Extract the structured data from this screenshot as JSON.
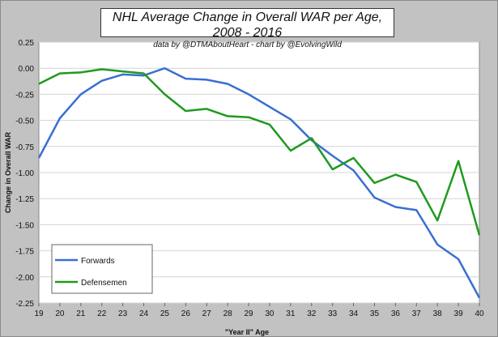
{
  "chart_data": {
    "type": "line",
    "title": "NHL Average Change in Overall WAR per Age, 2008 - 2016",
    "subtitle": "data by @DTMAboutHeart  -  chart by @EvolvingWild",
    "xlabel": "\"Year II\" Age",
    "ylabel": "Change in Overall WAR",
    "x": [
      19,
      20,
      21,
      22,
      23,
      24,
      25,
      26,
      27,
      28,
      29,
      30,
      31,
      32,
      33,
      34,
      35,
      36,
      37,
      38,
      39,
      40
    ],
    "ylim": [
      -2.25,
      0.25
    ],
    "yticks": [
      "0.25",
      "0.00",
      "-0.25",
      "-0.50",
      "-0.75",
      "-1.00",
      "-1.25",
      "-1.50",
      "-1.75",
      "-2.00",
      "-2.25"
    ],
    "grid": "horizontal",
    "legend_position": "bottom-left",
    "series": [
      {
        "name": "Forwards",
        "color": "#3a6fd0",
        "values": [
          -0.86,
          -0.48,
          -0.25,
          -0.12,
          -0.06,
          -0.07,
          0.0,
          -0.1,
          -0.11,
          -0.15,
          -0.25,
          -0.37,
          -0.49,
          -0.69,
          -0.84,
          -0.98,
          -1.24,
          -1.33,
          -1.36,
          -1.69,
          -1.83,
          -2.2
        ]
      },
      {
        "name": "Defensemen",
        "color": "#1f9a1f",
        "values": [
          -0.15,
          -0.05,
          -0.04,
          -0.01,
          -0.03,
          -0.05,
          -0.25,
          -0.41,
          -0.39,
          -0.46,
          -0.47,
          -0.54,
          -0.79,
          -0.67,
          -0.97,
          -0.86,
          -1.1,
          -1.02,
          -1.09,
          -1.46,
          -0.89,
          -1.6
        ]
      }
    ]
  }
}
